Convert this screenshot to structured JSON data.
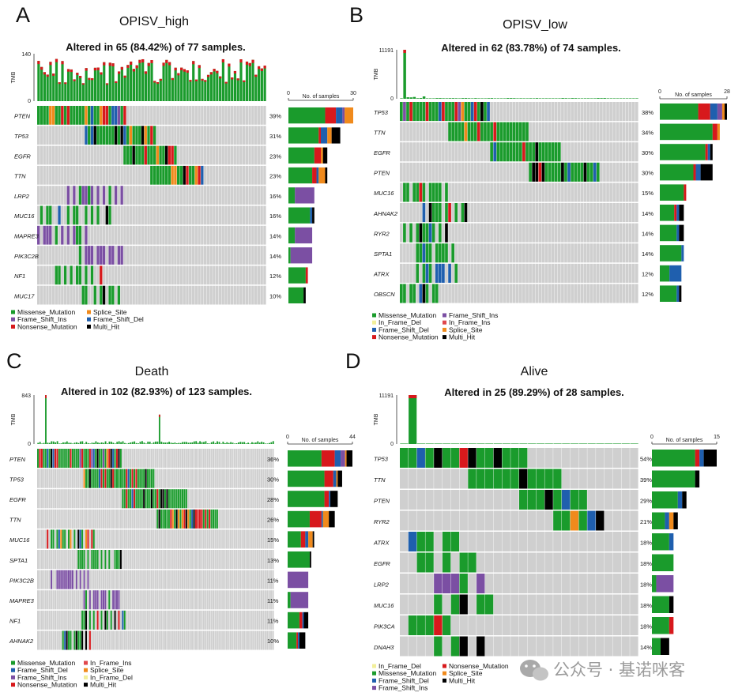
{
  "panels": [
    {
      "letter": "A",
      "name": "OPISV_high",
      "summary": "Altered in 65 (84.42%) of 77 samples.",
      "tmb_label": "TMB",
      "tmb_max": "140",
      "tmb_min": "0",
      "bar_axis_title": "No. of samples",
      "bar_axis_min": "0",
      "bar_axis_max": "30",
      "genes": [
        "PTEN",
        "TP53",
        "EGFR",
        "TTN",
        "LRP2",
        "MUC16",
        "MAPRE3",
        "PIK3C2B",
        "NF1",
        "MUC17"
      ],
      "percents": [
        "39%",
        "31%",
        "23%",
        "23%",
        "16%",
        "16%",
        "14%",
        "14%",
        "12%",
        "10%"
      ],
      "legend": [
        "Missense_Mutation",
        "Splice_Site",
        "Frame_Shift_Ins",
        "Frame_Shift_Del",
        "Nonsense_Mutation",
        "Multi_Hit"
      ]
    },
    {
      "letter": "B",
      "name": "OPISV_low",
      "summary": "Altered in 62 (83.78%) of 74 samples.",
      "tmb_label": "TMB",
      "tmb_max": "11191",
      "tmb_min": "0",
      "bar_axis_title": "No. of samples",
      "bar_axis_min": "0",
      "bar_axis_max": "28",
      "genes": [
        "TP53",
        "TTN",
        "EGFR",
        "PTEN",
        "MUC16",
        "AHNAK2",
        "RYR2",
        "SPTA1",
        "ATRX",
        "OBSCN"
      ],
      "percents": [
        "38%",
        "34%",
        "30%",
        "30%",
        "15%",
        "14%",
        "14%",
        "14%",
        "12%",
        "12%"
      ],
      "legend": [
        "Missense_Mutation",
        "Frame_Shift_Ins",
        "In_Frame_Del",
        "In_Frame_Ins",
        "Frame_Shift_Del",
        "Splice_Site",
        "Nonsense_Mutation",
        "Multi_Hit"
      ]
    },
    {
      "letter": "C",
      "name": "Death",
      "summary": "Altered in 102 (82.93%) of 123 samples.",
      "tmb_label": "TMB",
      "tmb_max": "843",
      "tmb_min": "0",
      "bar_axis_title": "No. of samples",
      "bar_axis_min": "0",
      "bar_axis_max": "44",
      "genes": [
        "PTEN",
        "TP53",
        "EGFR",
        "TTN",
        "MUC16",
        "SPTA1",
        "PIK3C2B",
        "MAPRE3",
        "NF1",
        "AHNAK2"
      ],
      "percents": [
        "36%",
        "30%",
        "28%",
        "26%",
        "15%",
        "13%",
        "11%",
        "11%",
        "11%",
        "10%"
      ],
      "legend": [
        "Missense_Mutation",
        "In_Frame_Ins",
        "Frame_Shift_Del",
        "Splice_Site",
        "Frame_Shift_Ins",
        "In_Frame_Del",
        "Nonsense_Mutation",
        "Multi_Hit"
      ]
    },
    {
      "letter": "D",
      "name": "Alive",
      "summary": "Altered in 25 (89.29%) of 28 samples.",
      "tmb_label": "TMB",
      "tmb_max": "11191",
      "tmb_min": "0",
      "bar_axis_title": "No. of samples",
      "bar_axis_min": "0",
      "bar_axis_max": "15",
      "genes": [
        "TP53",
        "TTN",
        "PTEN",
        "RYR2",
        "ATRX",
        "EGFR",
        "LRP2",
        "MUC16",
        "PIK3CA",
        "DNAH3"
      ],
      "percents": [
        "54%",
        "39%",
        "29%",
        "21%",
        "18%",
        "18%",
        "18%",
        "18%",
        "18%",
        "14%"
      ],
      "legend": [
        "In_Frame_Del",
        "Nonsense_Mutation",
        "Missense_Mutation",
        "Splice_Site",
        "Frame_Shift_Del",
        "Multi_Hit",
        "Frame_Shift_Ins"
      ]
    }
  ],
  "colors": {
    "Missense_Mutation": "#1a9b2c",
    "Nonsense_Mutation": "#d7191c",
    "Frame_Shift_Del": "#1f5fae",
    "Frame_Shift_Ins": "#7b4fa3",
    "Splice_Site": "#f08a1c",
    "In_Frame_Del": "#f2ef9a",
    "In_Frame_Ins": "#e0474c",
    "Multi_Hit": "#000000",
    "background": "#cfcfcf"
  },
  "watermark": "公众号 · 基诺咪客",
  "chart_data": [
    {
      "type": "heatmap",
      "title": "OPISV_high",
      "subtitle": "Altered in 65 (84.42%) of 77 samples.",
      "samples": 77,
      "altered": 65,
      "genes": [
        "PTEN",
        "TP53",
        "EGFR",
        "TTN",
        "LRP2",
        "MUC16",
        "MAPRE3",
        "PIK3C2B",
        "NF1",
        "MUC17"
      ],
      "gene_percent": [
        39,
        31,
        23,
        23,
        16,
        16,
        14,
        14,
        12,
        10
      ],
      "tmb_ylim": [
        0,
        140
      ],
      "bar_xlim": [
        0,
        30
      ],
      "gene_sample_counts": [
        30,
        24,
        18,
        18,
        12,
        12,
        11,
        11,
        9,
        8
      ]
    },
    {
      "type": "heatmap",
      "title": "OPISV_low",
      "subtitle": "Altered in 62 (83.78%) of 74 samples.",
      "samples": 74,
      "altered": 62,
      "genes": [
        "TP53",
        "TTN",
        "EGFR",
        "PTEN",
        "MUC16",
        "AHNAK2",
        "RYR2",
        "SPTA1",
        "ATRX",
        "OBSCN"
      ],
      "gene_percent": [
        38,
        34,
        30,
        30,
        15,
        14,
        14,
        14,
        12,
        12
      ],
      "tmb_ylim": [
        0,
        11191
      ],
      "bar_xlim": [
        0,
        28
      ],
      "gene_sample_counts": [
        28,
        25,
        22,
        22,
        11,
        10,
        10,
        10,
        9,
        9
      ]
    },
    {
      "type": "heatmap",
      "title": "Death",
      "subtitle": "Altered in 102 (82.93%) of 123 samples.",
      "samples": 123,
      "altered": 102,
      "genes": [
        "PTEN",
        "TP53",
        "EGFR",
        "TTN",
        "MUC16",
        "SPTA1",
        "PIK3C2B",
        "MAPRE3",
        "NF1",
        "AHNAK2"
      ],
      "gene_percent": [
        36,
        30,
        28,
        26,
        15,
        13,
        11,
        11,
        11,
        10
      ],
      "tmb_ylim": [
        0,
        843
      ],
      "bar_xlim": [
        0,
        44
      ],
      "gene_sample_counts": [
        44,
        37,
        34,
        32,
        18,
        16,
        14,
        14,
        14,
        12
      ]
    },
    {
      "type": "heatmap",
      "title": "Alive",
      "subtitle": "Altered in 25 (89.29%) of 28 samples.",
      "samples": 28,
      "altered": 25,
      "genes": [
        "TP53",
        "TTN",
        "PTEN",
        "RYR2",
        "ATRX",
        "EGFR",
        "LRP2",
        "MUC16",
        "PIK3CA",
        "DNAH3"
      ],
      "gene_percent": [
        54,
        39,
        29,
        21,
        18,
        18,
        18,
        18,
        18,
        14
      ],
      "tmb_ylim": [
        0,
        11191
      ],
      "bar_xlim": [
        0,
        15
      ],
      "gene_sample_counts": [
        15,
        11,
        8,
        6,
        5,
        5,
        5,
        5,
        5,
        4
      ]
    }
  ]
}
